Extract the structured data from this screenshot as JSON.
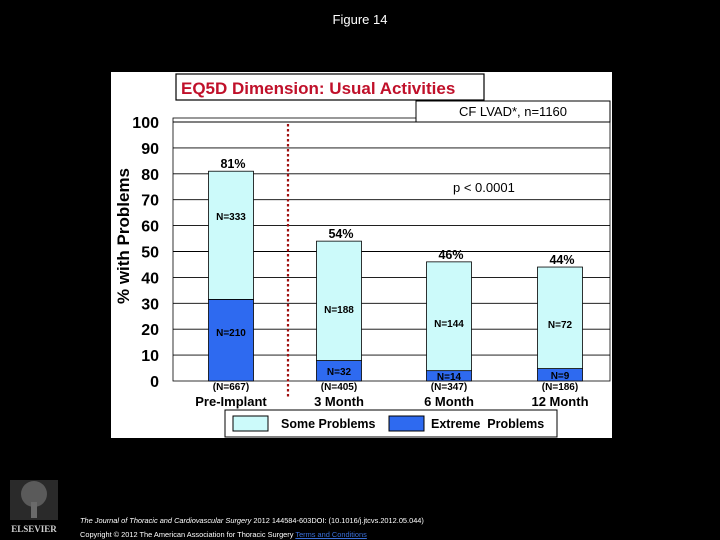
{
  "figure_caption": "Figure 14",
  "chart_data": {
    "type": "bar",
    "title": "EQ5D Dimension: Usual Activities",
    "legend_box_label": "CF LVAD*, n=1160",
    "ylabel": "% with Problems",
    "ylim": [
      0,
      100
    ],
    "yticks": [
      "0",
      "10",
      "20",
      "30",
      "40",
      "50",
      "60",
      "70",
      "80",
      "90",
      "100"
    ],
    "grid": true,
    "stacked": true,
    "annotation": "p < 0.0001",
    "categories": [
      "Pre-Implant",
      "3 Month",
      "6 Month",
      "12 Month"
    ],
    "category_n": [
      "(N=667)",
      "(N=405)",
      "(N=347)",
      "(N=186)"
    ],
    "totals": [
      81,
      54,
      46,
      44
    ],
    "total_labels": [
      "81%",
      "54%",
      "46%",
      "44%"
    ],
    "series": [
      {
        "name": "Extreme  Problems",
        "values": [
          31.5,
          7.9,
          4.0,
          4.8
        ],
        "count_labels": [
          "N=210",
          "N=32",
          "N=14",
          "N=9"
        ],
        "color": "#2e6af0"
      },
      {
        "name": "Some Problems",
        "values": [
          49.5,
          46.1,
          42.0,
          39.2
        ],
        "count_labels": [
          "N=333",
          "N=188",
          "N=144",
          "N=72"
        ],
        "color": "#ccfafa"
      }
    ],
    "legend": [
      "Some Problems",
      "Extreme  Problems"
    ],
    "legend_position": "bottom",
    "title_color": "#c0102a",
    "divider_color": "#a01010"
  },
  "footer": {
    "journal": "The Journal of Thoracic and Cardiovascular Surgery",
    "citation_rest": " 2012 144584-603DOI: (10.1016/j.jtcvs.2012.05.044)",
    "copyright": "Copyright © 2012 The American Association for Thoracic Surgery ",
    "terms_link": "Terms and Conditions",
    "logo_text": "ELSEVIER"
  }
}
